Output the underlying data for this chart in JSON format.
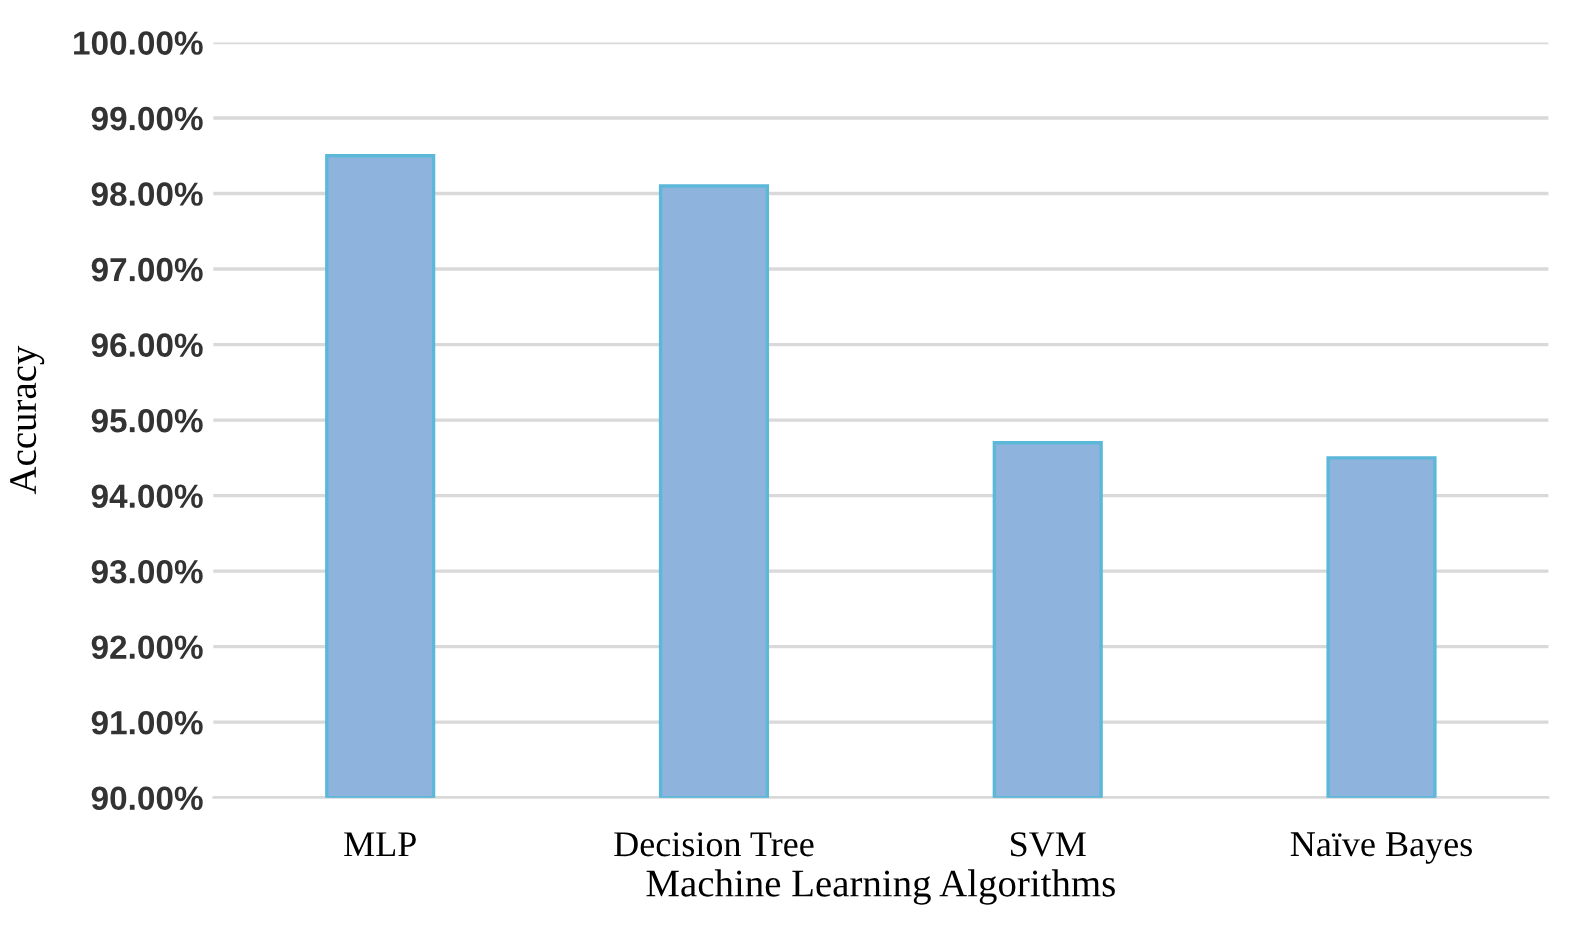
{
  "chart_data": {
    "type": "bar",
    "xlabel": "Machine Learning Algorithms",
    "ylabel": "Accuracy",
    "categories": [
      "MLP",
      "Decision Tree",
      "SVM",
      "Naïve Bayes"
    ],
    "values": [
      98.5,
      98.1,
      94.7,
      94.5
    ],
    "color": "#8eb4de",
    "ylim": [
      90,
      100
    ],
    "yticks": [
      {
        "value": 90,
        "label": "90.00%"
      },
      {
        "value": 91,
        "label": "91.00%"
      },
      {
        "value": 92,
        "label": "92.00%"
      },
      {
        "value": 93,
        "label": "93.00%"
      },
      {
        "value": 94,
        "label": "94.00%"
      },
      {
        "value": 95,
        "label": "95.00%"
      },
      {
        "value": 96,
        "label": "96.00%"
      },
      {
        "value": 97,
        "label": "97.00%"
      },
      {
        "value": 98,
        "label": "98.00%"
      },
      {
        "value": 99,
        "label": "99.00%"
      },
      {
        "value": 100,
        "label": "100.00%"
      }
    ],
    "grid": "y"
  }
}
